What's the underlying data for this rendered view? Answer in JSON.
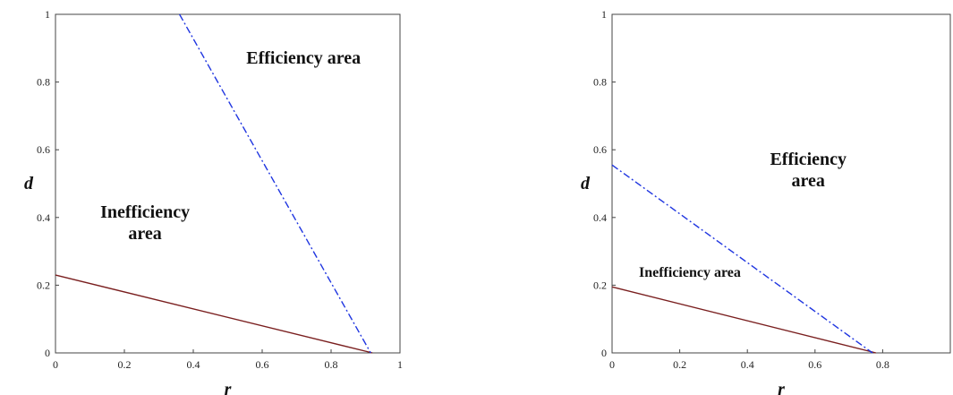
{
  "chart_data": [
    {
      "type": "line",
      "title": "",
      "xlabel": "r",
      "ylabel": "d",
      "xlim": [
        0,
        1
      ],
      "ylim": [
        0,
        1
      ],
      "x_ticks": [
        "0",
        "0.2",
        "0.4",
        "0.6",
        "0.8",
        "1"
      ],
      "y_ticks": [
        "0",
        "0.2",
        "0.4",
        "0.6",
        "0.8",
        "1"
      ],
      "series": [
        {
          "style": "solid",
          "color": "#7a1f1f",
          "points": [
            [
              0,
              0.23
            ],
            [
              0.92,
              0
            ]
          ]
        },
        {
          "style": "dashdot",
          "color": "#1f35e0",
          "points": [
            [
              0.36,
              1.0
            ],
            [
              0.915,
              0
            ]
          ]
        }
      ],
      "annotations": [
        {
          "lines": [
            "Efficiency  area"
          ],
          "x": 0.72,
          "y": 0.855,
          "size": "large"
        },
        {
          "lines": [
            "Inefficiency",
            "area"
          ],
          "x": 0.26,
          "y": 0.4,
          "size": "large"
        }
      ]
    },
    {
      "type": "line",
      "title": "",
      "xlabel": "r",
      "ylabel": "d",
      "xlim": [
        0,
        1
      ],
      "ylim": [
        0,
        1
      ],
      "x_ticks": [
        "0",
        "0.2",
        "0.4",
        "0.6",
        "0.8"
      ],
      "y_ticks": [
        "0",
        "0.2",
        "0.4",
        "0.6",
        "0.8",
        "1"
      ],
      "series": [
        {
          "style": "solid",
          "color": "#7a1f1f",
          "points": [
            [
              0,
              0.195
            ],
            [
              0.78,
              0
            ]
          ]
        },
        {
          "style": "dashdot",
          "color": "#1f35e0",
          "points": [
            [
              0,
              0.555
            ],
            [
              0.77,
              0
            ]
          ]
        }
      ],
      "annotations": [
        {
          "lines": [
            "Efficiency",
            "area"
          ],
          "x": 0.58,
          "y": 0.555,
          "size": "large"
        },
        {
          "lines": [
            "Inefficiency area"
          ],
          "x": 0.23,
          "y": 0.225,
          "size": "small"
        }
      ]
    }
  ]
}
